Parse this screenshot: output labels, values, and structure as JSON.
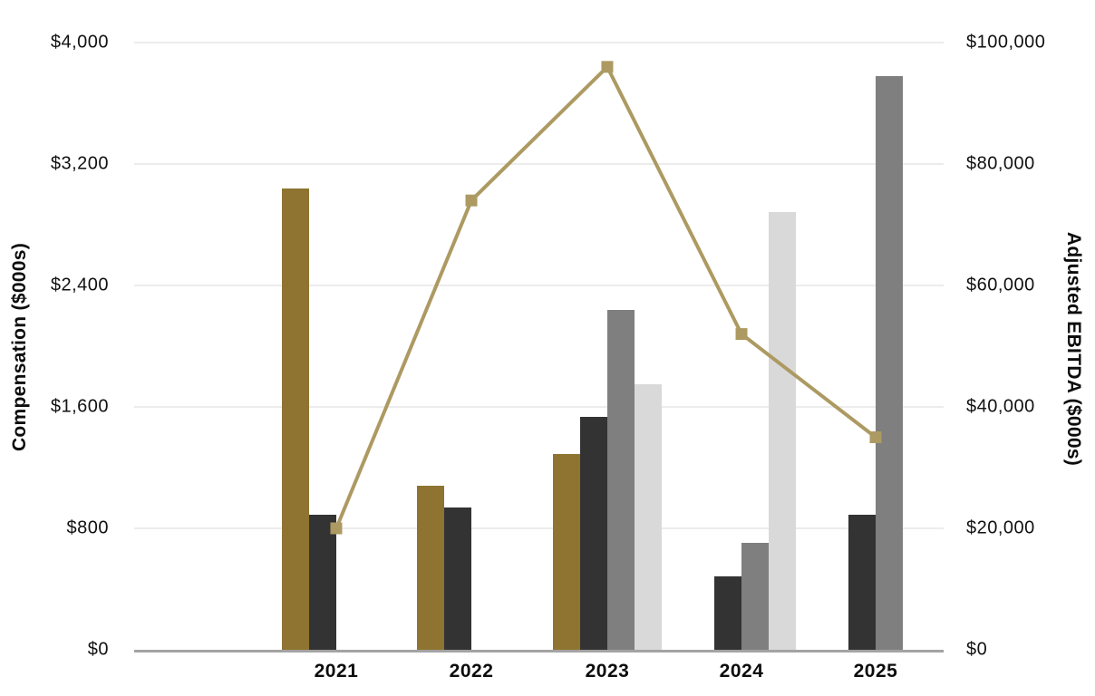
{
  "chart_data": {
    "type": "combo-bar-line",
    "title": "",
    "categories": [
      "2021",
      "2022",
      "2023",
      "2024",
      "2025"
    ],
    "bar_series": [
      {
        "name": "gold-bar-series",
        "color": "#8e7430",
        "values": [
          3040,
          1080,
          1290,
          null,
          null
        ]
      },
      {
        "name": "charcoal-bar-series",
        "color": "#333333",
        "values": [
          890,
          940,
          1535,
          485,
          890
        ]
      },
      {
        "name": "gray-bar-series",
        "color": "#7f7f7f",
        "values": [
          null,
          null,
          2240,
          705,
          3780
        ]
      },
      {
        "name": "light-gray-bar-series",
        "color": "#d9d9d9",
        "values": [
          null,
          null,
          1750,
          2885,
          null
        ]
      }
    ],
    "line_series": {
      "name": "adjusted-ebitda-line",
      "color": "#ad9a62",
      "marker": "square",
      "values": [
        20000,
        74000,
        96000,
        52000,
        35000
      ]
    },
    "left_axis": {
      "label": "Compensation ($000s)",
      "min": 0,
      "max": 4000,
      "step": 800,
      "tick_labels": [
        "$4,000",
        "$3,200",
        "$2,400",
        "$1,600",
        "$800",
        "$0"
      ]
    },
    "right_axis": {
      "label": "Adjusted EBITDA ($000s)",
      "min": 0,
      "max": 100000,
      "step": 20000,
      "tick_labels": [
        "$100,000",
        "$80,000",
        "$60,000",
        "$40,000",
        "$20,000",
        "$0"
      ]
    },
    "layout": {
      "grid": true,
      "legend": "none",
      "gridline_color": "#ececec",
      "axis_line_color": "#a3a3a3",
      "group_center_fractions": [
        0.2497,
        0.4166,
        0.5845,
        0.7503,
        0.916
      ]
    }
  }
}
